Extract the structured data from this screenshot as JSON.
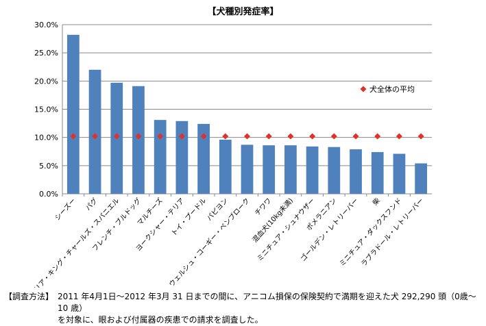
{
  "chart_data": {
    "type": "bar",
    "title": "【犬種別発症率】",
    "categories": [
      "シーズー",
      "パグ",
      "キャバリア・キング・チャールズ・スパニエル",
      "フレンチ・ブルドッグ",
      "マルチーズ",
      "ヨークシャー・テリア",
      "トイ・プードル",
      "パピヨン",
      "ウェルシュ・コーギー・ペンブローク",
      "チワワ",
      "混血犬(10kg未満)",
      "ミニチュア・シュナウザー",
      "ポメラニアン",
      "ゴールデン・レトリーバー",
      "柴",
      "ミニチュア・ダックスフンド",
      "ラブラドール・レトリーバー"
    ],
    "series": [
      {
        "type": "bar",
        "color": "#4f81bd",
        "values": [
          28.2,
          22.0,
          19.7,
          19.1,
          13.1,
          12.9,
          12.4,
          9.6,
          8.7,
          8.6,
          8.6,
          8.4,
          8.3,
          7.9,
          7.4,
          7.1,
          5.4
        ]
      },
      {
        "type": "marker",
        "name": "犬全体の平均",
        "color": "#e0312b",
        "values": [
          10.2,
          10.2,
          10.2,
          10.2,
          10.2,
          10.2,
          10.2,
          10.2,
          10.2,
          10.2,
          10.2,
          10.2,
          10.2,
          10.2,
          10.2,
          10.2,
          10.2
        ]
      }
    ],
    "yticks": [
      "0.0%",
      "5.0%",
      "10.0%",
      "15.0%",
      "20.0%",
      "25.0%",
      "30.0%"
    ],
    "ylim": [
      0,
      30
    ],
    "grid": true,
    "legend_position": "right"
  },
  "footer": {
    "label": "【調査方法】",
    "line1": "2011 年4月1日～2012 年3月 31 日までの間に、アニコム損保の保険契約で満期を迎えた犬 292,290 頭（0歳～10 歳）",
    "line2": "を対象に、眼および付属器の疾患での請求を調査した。"
  }
}
